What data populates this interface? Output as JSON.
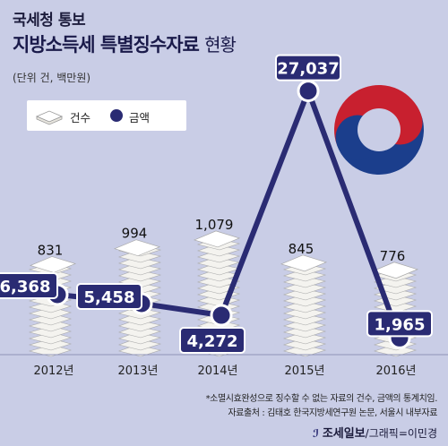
{
  "header": {
    "kicker": "국세청 통보",
    "title_main": "지방소득세 특별징수자료",
    "title_sub": "현황",
    "unit": "(단위 건, 백만원)"
  },
  "legend": {
    "count_label": "건수",
    "amount_label": "금액"
  },
  "footnote": {
    "line1": "*소멸시효완성으로 징수할 수 없는 자료의 건수, 금액의 통계치임.",
    "line2": "자료출처 : 김태호 한국지방세연구원 논문, 서울시 내부자료"
  },
  "credit": {
    "brand": "조세일보",
    "graphic": "/그래픽=이민경"
  },
  "colors": {
    "background": "#c9cde6",
    "navy": "#2a2b73",
    "paper": "#f4f3ef",
    "emblem_red": "#c8202f",
    "emblem_blue": "#1b3e8c"
  },
  "chart_data": {
    "type": "bar",
    "categories": [
      "2012년",
      "2013년",
      "2014년",
      "2015년",
      "2016년"
    ],
    "series": [
      {
        "name": "건수",
        "type": "bar",
        "values": [
          831,
          994,
          1079,
          845,
          776
        ],
        "labels": [
          "831",
          "994",
          "1,079",
          "845",
          "776"
        ]
      },
      {
        "name": "금액",
        "type": "line",
        "values": [
          6368,
          5458,
          4272,
          27037,
          1965
        ],
        "labels": [
          "6,368",
          "5,458",
          "4,272",
          "27,037",
          "1,965"
        ]
      }
    ],
    "title": "지방소득세 특별징수자료 현황",
    "legend": "top-left",
    "grid": false
  }
}
